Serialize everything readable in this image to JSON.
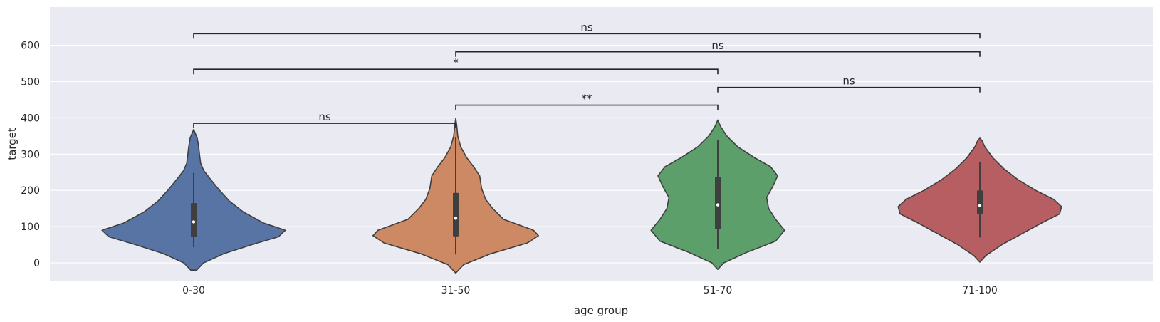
{
  "chart_data": {
    "type": "violin",
    "xlabel": "age group",
    "ylabel": "target",
    "categories": [
      "0-30",
      "31-50",
      "51-70",
      "71-100"
    ],
    "colors": [
      "#5874a5",
      "#cc8963",
      "#5d9f6b",
      "#b65e61"
    ],
    "background": "#eaeaf2",
    "grid": true,
    "ylim": [
      -45,
      670
    ],
    "yticks": [
      0,
      100,
      200,
      300,
      400,
      500,
      600
    ],
    "ytick_labels": [
      "0",
      "100",
      "200",
      "300",
      "400",
      "500",
      "600"
    ],
    "violins": [
      {
        "category": "0-30",
        "min_extent": -20,
        "max_extent": 368,
        "median": 113,
        "q1": 72,
        "q3": 165,
        "whisker_low": 43,
        "whisker_high": 248,
        "profile": [
          [
            -20,
            0.03
          ],
          [
            0,
            0.1
          ],
          [
            25,
            0.3
          ],
          [
            50,
            0.58
          ],
          [
            72,
            0.85
          ],
          [
            90,
            0.92
          ],
          [
            110,
            0.7
          ],
          [
            140,
            0.5
          ],
          [
            170,
            0.36
          ],
          [
            200,
            0.26
          ],
          [
            230,
            0.17
          ],
          [
            255,
            0.1
          ],
          [
            275,
            0.07
          ],
          [
            295,
            0.06
          ],
          [
            320,
            0.05
          ],
          [
            345,
            0.035
          ],
          [
            368,
            0.0
          ]
        ]
      },
      {
        "category": "31-50",
        "min_extent": -28,
        "max_extent": 398,
        "median": 123,
        "q1": 73,
        "q3": 193,
        "whisker_low": 23,
        "whisker_high": 347,
        "profile": [
          [
            -28,
            0.0
          ],
          [
            -5,
            0.08
          ],
          [
            25,
            0.35
          ],
          [
            55,
            0.72
          ],
          [
            75,
            0.83
          ],
          [
            90,
            0.78
          ],
          [
            120,
            0.48
          ],
          [
            150,
            0.37
          ],
          [
            175,
            0.3
          ],
          [
            205,
            0.26
          ],
          [
            240,
            0.24
          ],
          [
            265,
            0.18
          ],
          [
            290,
            0.11
          ],
          [
            320,
            0.05
          ],
          [
            350,
            0.02
          ],
          [
            380,
            0.01
          ],
          [
            398,
            0.0
          ]
        ]
      },
      {
        "category": "51-70",
        "min_extent": -18,
        "max_extent": 394,
        "median": 160,
        "q1": 93,
        "q3": 237,
        "whisker_low": 38,
        "whisker_high": 340,
        "profile": [
          [
            -18,
            0.0
          ],
          [
            0,
            0.06
          ],
          [
            30,
            0.3
          ],
          [
            60,
            0.58
          ],
          [
            90,
            0.67
          ],
          [
            120,
            0.58
          ],
          [
            150,
            0.51
          ],
          [
            180,
            0.49
          ],
          [
            210,
            0.55
          ],
          [
            240,
            0.6
          ],
          [
            265,
            0.53
          ],
          [
            290,
            0.37
          ],
          [
            320,
            0.2
          ],
          [
            350,
            0.09
          ],
          [
            375,
            0.03
          ],
          [
            394,
            0.0
          ]
        ]
      },
      {
        "category": "71-100",
        "min_extent": 2,
        "max_extent": 344,
        "median": 158,
        "q1": 135,
        "q3": 200,
        "whisker_low": 70,
        "whisker_high": 278,
        "profile": [
          [
            2,
            0.0
          ],
          [
            20,
            0.06
          ],
          [
            50,
            0.22
          ],
          [
            80,
            0.42
          ],
          [
            110,
            0.62
          ],
          [
            135,
            0.8
          ],
          [
            155,
            0.82
          ],
          [
            175,
            0.74
          ],
          [
            200,
            0.56
          ],
          [
            230,
            0.38
          ],
          [
            260,
            0.24
          ],
          [
            290,
            0.13
          ],
          [
            320,
            0.05
          ],
          [
            338,
            0.02
          ],
          [
            344,
            0.0
          ]
        ]
      }
    ],
    "annotations": [
      {
        "from": 0,
        "to": 1,
        "y": 385,
        "label": "ns"
      },
      {
        "from": 1,
        "to": 2,
        "y": 435,
        "label": "**"
      },
      {
        "from": 2,
        "to": 3,
        "y": 484,
        "label": "ns"
      },
      {
        "from": 0,
        "to": 2,
        "y": 534,
        "label": "*"
      },
      {
        "from": 1,
        "to": 3,
        "y": 582,
        "label": "ns"
      },
      {
        "from": 0,
        "to": 3,
        "y": 632,
        "label": "ns"
      }
    ]
  }
}
